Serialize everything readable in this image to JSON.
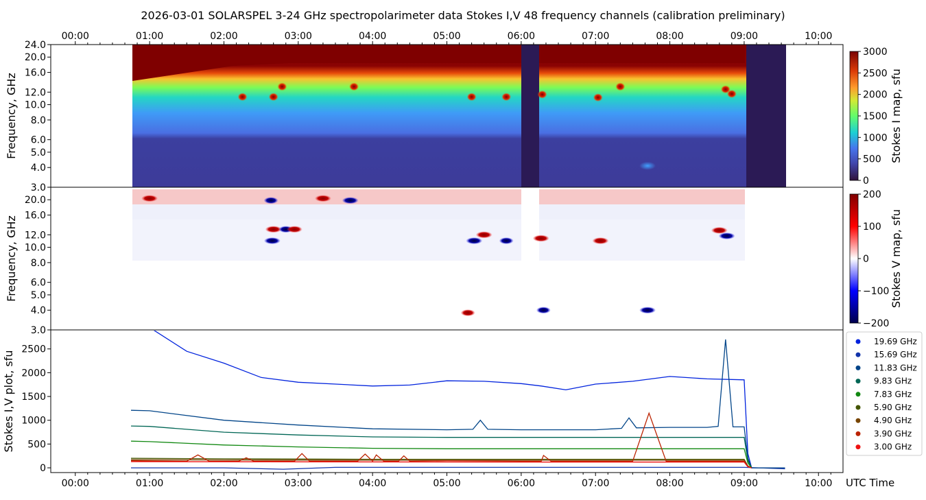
{
  "title": "2026-03-01  SOLARSPEL  3-24 GHz spectropolarimeter data   Stokes I,V   48 frequency channels   (calibration preliminary)",
  "chart_data": [
    {
      "type": "heatmap",
      "name": "stokes-i-map",
      "ylabel": "Frequency, GHz",
      "xlim_hours": [
        -0.33,
        10.33
      ],
      "x_ticks": [
        "00:00",
        "01:00",
        "02:00",
        "03:00",
        "04:00",
        "05:00",
        "06:00",
        "07:00",
        "08:00",
        "09:00",
        "10:00"
      ],
      "y_ticks": [
        "3.0",
        "4.0",
        "5.0",
        "6.0",
        "8.0",
        "10.0",
        "12.0",
        "16.0",
        "20.0",
        "24.0"
      ],
      "y_tick_values": [
        3,
        4,
        5,
        6,
        8,
        10,
        12,
        16,
        20,
        24
      ],
      "ylim": [
        3,
        24
      ],
      "y_scale": "log",
      "data_time_range": [
        "00:45",
        "09:33"
      ],
      "data_gap": [
        "06:00",
        "06:14"
      ],
      "colorbar_label": "Stokes I map, sfu",
      "colorbar_ticks": [
        "0",
        "500",
        "1000",
        "1500",
        "2000",
        "2500",
        "3000"
      ],
      "colorbar_range": [
        0,
        3000
      ],
      "colormap": "jet",
      "bursts": [
        {
          "t": "02:15",
          "f": 11.2
        },
        {
          "t": "02:40",
          "f": 11.2
        },
        {
          "t": "02:47",
          "f": 13.0
        },
        {
          "t": "03:45",
          "f": 13.0
        },
        {
          "t": "05:20",
          "f": 11.2
        },
        {
          "t": "05:48",
          "f": 11.2
        },
        {
          "t": "06:17",
          "f": 11.6
        },
        {
          "t": "07:02",
          "f": 11.1
        },
        {
          "t": "07:20",
          "f": 13.0
        },
        {
          "t": "07:42",
          "f": 4.1
        },
        {
          "t": "08:45",
          "f": 12.5
        },
        {
          "t": "08:50",
          "f": 11.7
        }
      ]
    },
    {
      "type": "heatmap",
      "name": "stokes-v-map",
      "ylabel": "Frequency, GHz",
      "y_ticks": [
        "3.0",
        "4.0",
        "5.0",
        "6.0",
        "8.0",
        "10.0",
        "12.0",
        "16.0",
        "20.0"
      ],
      "y_tick_values": [
        3,
        4,
        5,
        6,
        8,
        10,
        12,
        16,
        20
      ],
      "ylim": [
        3,
        24
      ],
      "y_scale": "log",
      "colorbar_label": "Stokes V map, sfu",
      "colorbar_ticks": [
        "200",
        "100",
        "0",
        "−100",
        "−200"
      ],
      "colorbar_range": [
        -200,
        200
      ],
      "colormap": "seismic",
      "bursts": [
        {
          "t": "01:00",
          "f": 20.4,
          "v": 200
        },
        {
          "t": "02:38",
          "f": 19.8,
          "v": -150
        },
        {
          "t": "03:20",
          "f": 20.4,
          "v": 200
        },
        {
          "t": "03:42",
          "f": 19.8,
          "v": -200
        },
        {
          "t": "02:40",
          "f": 13.0,
          "v": 200
        },
        {
          "t": "02:50",
          "f": 13.0,
          "v": -150
        },
        {
          "t": "02:57",
          "f": 13.0,
          "v": 180
        },
        {
          "t": "02:39",
          "f": 11.0,
          "v": -200
        },
        {
          "t": "05:22",
          "f": 11.0,
          "v": -200
        },
        {
          "t": "05:30",
          "f": 12.0,
          "v": 200
        },
        {
          "t": "05:48",
          "f": 11.0,
          "v": -150
        },
        {
          "t": "06:16",
          "f": 11.4,
          "v": 200
        },
        {
          "t": "07:04",
          "f": 11.0,
          "v": 200
        },
        {
          "t": "08:40",
          "f": 12.8,
          "v": 200
        },
        {
          "t": "08:46",
          "f": 11.8,
          "v": -200
        },
        {
          "t": "07:42",
          "f": 4.0,
          "v": -200
        },
        {
          "t": "06:18",
          "f": 4.0,
          "v": -150
        },
        {
          "t": "05:17",
          "f": 3.85,
          "v": 150
        }
      ]
    },
    {
      "type": "line",
      "name": "stokes-iv-plot",
      "ylabel": "Stokes I,V plot, sfu",
      "xlabel": "UTC Time",
      "x_ticks": [
        "00:00",
        "01:00",
        "02:00",
        "03:00",
        "04:00",
        "05:00",
        "06:00",
        "07:00",
        "08:00",
        "09:00",
        "10:00"
      ],
      "y_ticks": [
        "0",
        "500",
        "1000",
        "1500",
        "2000",
        "2500"
      ],
      "y_tick_values": [
        0,
        500,
        1000,
        1500,
        2000,
        2500
      ],
      "ylim": [
        -100,
        2900
      ],
      "legend_position": "right",
      "series": [
        {
          "name": "19.69 GHz",
          "color": "#0022dd",
          "points": [
            [
              0.75,
              3100
            ],
            [
              1,
              2950
            ],
            [
              1.5,
              2450
            ],
            [
              2,
              2200
            ],
            [
              2.5,
              1900
            ],
            [
              3,
              1800
            ],
            [
              3.5,
              1760
            ],
            [
              4,
              1720
            ],
            [
              4.5,
              1740
            ],
            [
              5,
              1830
            ],
            [
              5.5,
              1820
            ],
            [
              6,
              1770
            ],
            [
              6.27,
              1720
            ],
            [
              6.6,
              1640
            ],
            [
              7,
              1760
            ],
            [
              7.5,
              1820
            ],
            [
              8,
              1920
            ],
            [
              8.5,
              1870
            ],
            [
              9,
              1850
            ],
            [
              9.05,
              300
            ],
            [
              9.1,
              0
            ],
            [
              9.55,
              0
            ]
          ]
        },
        {
          "name": "15.69 GHz",
          "color": "#1133aa",
          "points": [
            [
              0.75,
              0
            ],
            [
              2,
              0
            ],
            [
              2.8,
              -30
            ],
            [
              3.5,
              10
            ],
            [
              6,
              10
            ],
            [
              6.27,
              10
            ],
            [
              9,
              10
            ],
            [
              9.55,
              -20
            ]
          ]
        },
        {
          "name": "11.83 GHz",
          "color": "#004488",
          "points": [
            [
              0.75,
              1210
            ],
            [
              1,
              1200
            ],
            [
              2,
              1000
            ],
            [
              3,
              900
            ],
            [
              4,
              820
            ],
            [
              5,
              800
            ],
            [
              5.35,
              810
            ],
            [
              5.45,
              1000
            ],
            [
              5.55,
              810
            ],
            [
              6,
              800
            ],
            [
              6.27,
              800
            ],
            [
              7,
              800
            ],
            [
              7.35,
              830
            ],
            [
              7.45,
              1050
            ],
            [
              7.55,
              840
            ],
            [
              8,
              850
            ],
            [
              8.5,
              850
            ],
            [
              8.65,
              870
            ],
            [
              8.75,
              2700
            ],
            [
              8.85,
              860
            ],
            [
              9,
              860
            ],
            [
              9.05,
              200
            ],
            [
              9.1,
              0
            ],
            [
              9.55,
              0
            ]
          ]
        },
        {
          "name": "9.83 GHz",
          "color": "#006655",
          "points": [
            [
              0.75,
              880
            ],
            [
              1,
              870
            ],
            [
              2,
              750
            ],
            [
              3,
              690
            ],
            [
              4,
              650
            ],
            [
              5,
              640
            ],
            [
              6,
              640
            ],
            [
              6.27,
              640
            ],
            [
              7,
              640
            ],
            [
              8,
              640
            ],
            [
              9,
              640
            ],
            [
              9.05,
              150
            ],
            [
              9.1,
              0
            ]
          ]
        },
        {
          "name": "7.83 GHz",
          "color": "#118811",
          "points": [
            [
              0.75,
              560
            ],
            [
              1,
              550
            ],
            [
              2,
              480
            ],
            [
              3,
              440
            ],
            [
              4,
              410
            ],
            [
              5,
              400
            ],
            [
              6,
              400
            ],
            [
              6.27,
              400
            ],
            [
              7,
              400
            ],
            [
              8,
              400
            ],
            [
              9,
              400
            ],
            [
              9.05,
              100
            ],
            [
              9.1,
              0
            ]
          ]
        },
        {
          "name": "5.90 GHz",
          "color": "#445500",
          "points": [
            [
              0.75,
              200
            ],
            [
              2,
              190
            ],
            [
              4,
              180
            ],
            [
              6,
              180
            ],
            [
              6.27,
              180
            ],
            [
              9,
              180
            ],
            [
              9.05,
              40
            ],
            [
              9.1,
              0
            ]
          ]
        },
        {
          "name": "4.90 GHz",
          "color": "#774400",
          "points": [
            [
              0.75,
              170
            ],
            [
              2,
              165
            ],
            [
              4,
              160
            ],
            [
              6,
              160
            ],
            [
              6.27,
              160
            ],
            [
              9,
              160
            ],
            [
              9.05,
              30
            ],
            [
              9.1,
              0
            ]
          ]
        },
        {
          "name": "3.90 GHz",
          "color": "#bb2200",
          "points": [
            [
              0.75,
              150
            ],
            [
              1.5,
              140
            ],
            [
              1.65,
              270
            ],
            [
              1.8,
              140
            ],
            [
              2.2,
              140
            ],
            [
              2.3,
              210
            ],
            [
              2.4,
              140
            ],
            [
              2.95,
              140
            ],
            [
              3.05,
              300
            ],
            [
              3.15,
              140
            ],
            [
              3.8,
              140
            ],
            [
              3.9,
              290
            ],
            [
              4.0,
              140
            ],
            [
              4.05,
              270
            ],
            [
              4.15,
              140
            ],
            [
              4.35,
              140
            ],
            [
              4.42,
              250
            ],
            [
              4.5,
              140
            ],
            [
              5.0,
              150
            ],
            [
              6,
              140
            ],
            [
              6.27,
              140
            ],
            [
              6.3,
              260
            ],
            [
              6.4,
              140
            ],
            [
              7.5,
              140
            ],
            [
              7.72,
              1150
            ],
            [
              7.95,
              140
            ],
            [
              9,
              140
            ],
            [
              9.05,
              30
            ],
            [
              9.1,
              0
            ]
          ]
        },
        {
          "name": "3.00 GHz",
          "color": "#ee1111",
          "points": [
            [
              0.75,
              130
            ],
            [
              6,
              120
            ],
            [
              6.27,
              120
            ],
            [
              9,
              120
            ],
            [
              9.05,
              20
            ],
            [
              9.1,
              0
            ]
          ]
        }
      ]
    }
  ]
}
